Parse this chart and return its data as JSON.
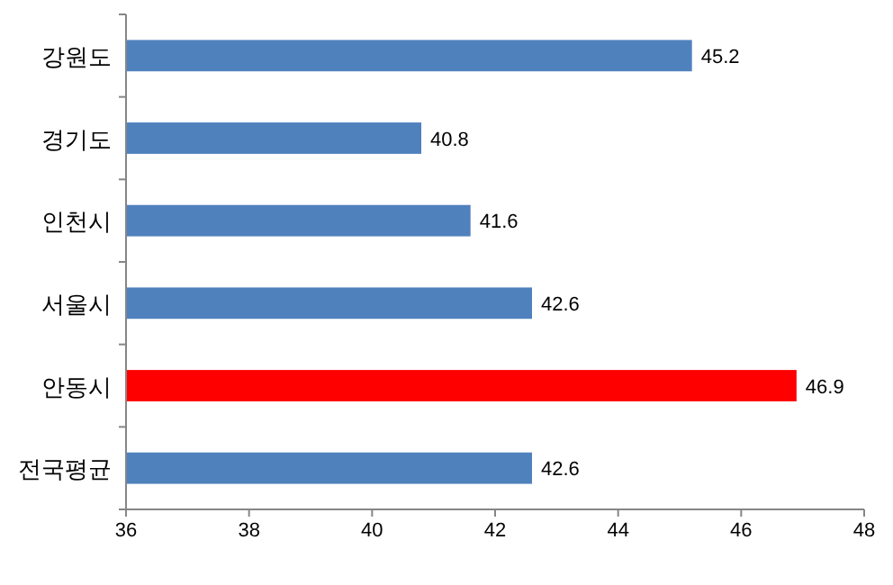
{
  "chart_data": {
    "type": "bar",
    "orientation": "horizontal",
    "categories": [
      "강원도",
      "경기도",
      "인천시",
      "서울시",
      "안동시",
      "전국평균"
    ],
    "values": [
      45.2,
      40.8,
      41.6,
      42.6,
      46.9,
      42.6
    ],
    "colors": [
      "#4f81bd",
      "#4f81bd",
      "#4f81bd",
      "#4f81bd",
      "#ff0000",
      "#4f81bd"
    ],
    "xlim": [
      36,
      48
    ],
    "xticks": [
      36,
      38,
      40,
      42,
      44,
      46,
      48
    ],
    "data_labels": true,
    "grid": false
  }
}
